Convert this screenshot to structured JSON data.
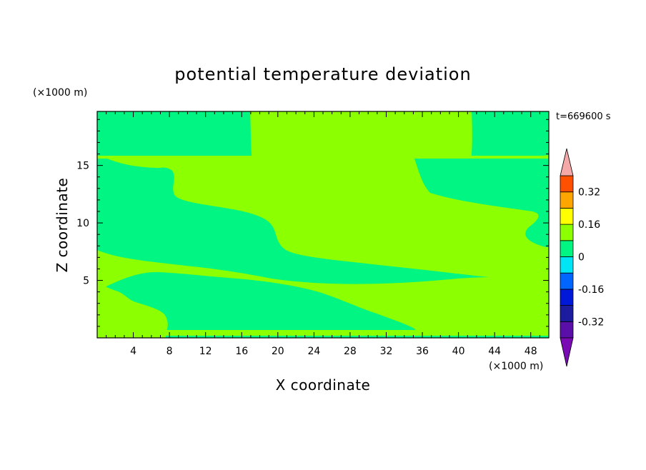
{
  "chart_data": {
    "type": "heatmap",
    "title": "potential temperature deviation",
    "xlabel": "X coordinate",
    "ylabel": "Z coordinate",
    "x_unit": "(×1000 m)",
    "y_unit": "(×1000 m)",
    "time_label": "t=669600 s",
    "xlim": [
      0,
      50
    ],
    "ylim": [
      0,
      19.7
    ],
    "x_ticks": [
      4,
      8,
      12,
      16,
      20,
      24,
      28,
      32,
      36,
      40,
      44,
      48
    ],
    "y_ticks": [
      5,
      10,
      15
    ],
    "colorbar": {
      "levels": [
        -0.4,
        -0.32,
        -0.24,
        -0.16,
        -0.08,
        0,
        0.08,
        0.16,
        0.24,
        0.32,
        0.4
      ],
      "colors": [
        "#5a0fa8",
        "#1c1c9e",
        "#0018d8",
        "#0066ff",
        "#00e5f5",
        "#00f582",
        "#8cff00",
        "#ffff00",
        "#ffa500",
        "#ff5000",
        "#ff2020"
      ],
      "over_color": "#f4a8a8",
      "under_color": "#7a0ab4",
      "tick_labels": [
        "0.32",
        "0.16",
        "0",
        "-0.16",
        "-0.32"
      ],
      "tick_values": [
        0.32,
        0.16,
        0,
        -0.16,
        -0.32
      ]
    },
    "regions": [
      {
        "class": "0 to 0.08",
        "color": "#8cff00",
        "extent": "band from x≈0–8 near surface rising to z≈7 at x≈50 (lower tilted band)"
      },
      {
        "class": "0 to 0.08",
        "color": "#8cff00",
        "extent": "band from z≈13 at x≈8 to z≈9 at x≈20, extending right to x≈45"
      },
      {
        "class": "0 to 0.08",
        "color": "#8cff00",
        "extent": "x≈17–41, z≈16–19.7 (upper block)"
      },
      {
        "class": "-0.08 to 0",
        "color": "#00f582",
        "extent": "background elsewhere"
      }
    ]
  }
}
